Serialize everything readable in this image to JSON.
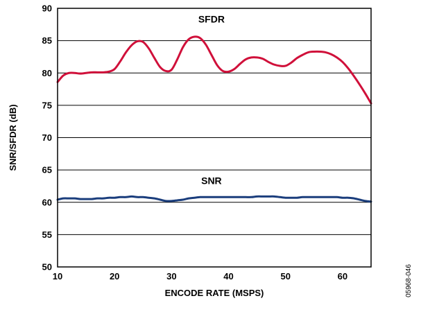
{
  "chart_data": {
    "type": "line",
    "xlabel": "ENCODE RATE (MSPS)",
    "ylabel": "SNR/SFDR (dB)",
    "xlim": [
      10,
      65
    ],
    "ylim": [
      50,
      90
    ],
    "x_ticks": [
      10,
      20,
      30,
      40,
      50,
      60
    ],
    "y_ticks": [
      50,
      55,
      60,
      65,
      70,
      75,
      80,
      85,
      90
    ],
    "grid": "horizontal",
    "series": [
      {
        "name": "SFDR",
        "color": "#d0103a",
        "x": [
          10,
          11,
          12,
          13,
          14,
          15,
          16,
          17,
          18,
          19,
          20,
          21,
          22,
          23,
          24,
          25,
          26,
          27,
          28,
          29,
          30,
          31,
          32,
          33,
          34,
          35,
          36,
          37,
          38,
          39,
          40,
          41,
          42,
          43,
          44,
          45,
          46,
          47,
          48,
          49,
          50,
          51,
          52,
          53,
          54,
          55,
          56,
          57,
          58,
          59,
          60,
          61,
          62,
          63,
          64,
          65
        ],
        "y": [
          78.6,
          79.6,
          80.0,
          80.0,
          79.9,
          80.0,
          80.1,
          80.1,
          80.1,
          80.2,
          80.6,
          81.8,
          83.2,
          84.3,
          84.9,
          84.8,
          83.8,
          82.3,
          80.9,
          80.3,
          80.5,
          82.1,
          84.0,
          85.2,
          85.6,
          85.4,
          84.4,
          82.8,
          81.2,
          80.3,
          80.2,
          80.6,
          81.4,
          82.1,
          82.4,
          82.4,
          82.2,
          81.7,
          81.3,
          81.1,
          81.1,
          81.6,
          82.3,
          82.8,
          83.2,
          83.3,
          83.3,
          83.2,
          82.9,
          82.4,
          81.7,
          80.7,
          79.5,
          78.2,
          76.8,
          75.3
        ]
      },
      {
        "name": "SNR",
        "color": "#1a3d7c",
        "x": [
          10,
          11,
          12,
          13,
          14,
          15,
          16,
          17,
          18,
          19,
          20,
          21,
          22,
          23,
          24,
          25,
          26,
          27,
          28,
          29,
          30,
          31,
          32,
          33,
          34,
          35,
          36,
          37,
          38,
          39,
          40,
          41,
          42,
          43,
          44,
          45,
          46,
          47,
          48,
          49,
          50,
          51,
          52,
          53,
          54,
          55,
          56,
          57,
          58,
          59,
          60,
          61,
          62,
          63,
          64,
          65
        ],
        "y": [
          60.4,
          60.6,
          60.6,
          60.6,
          60.5,
          60.5,
          60.5,
          60.6,
          60.6,
          60.7,
          60.7,
          60.8,
          60.8,
          60.9,
          60.8,
          60.8,
          60.7,
          60.6,
          60.4,
          60.2,
          60.2,
          60.3,
          60.4,
          60.6,
          60.7,
          60.8,
          60.8,
          60.8,
          60.8,
          60.8,
          60.8,
          60.8,
          60.8,
          60.8,
          60.8,
          60.9,
          60.9,
          60.9,
          60.9,
          60.8,
          60.7,
          60.7,
          60.7,
          60.8,
          60.8,
          60.8,
          60.8,
          60.8,
          60.8,
          60.8,
          60.7,
          60.7,
          60.6,
          60.4,
          60.2,
          60.1
        ]
      }
    ],
    "annotations": [
      {
        "text": "SFDR",
        "x": 37,
        "y": 87.8
      },
      {
        "text": "SNR",
        "x": 37,
        "y": 62.8
      }
    ]
  },
  "figure_code": "05968-046"
}
